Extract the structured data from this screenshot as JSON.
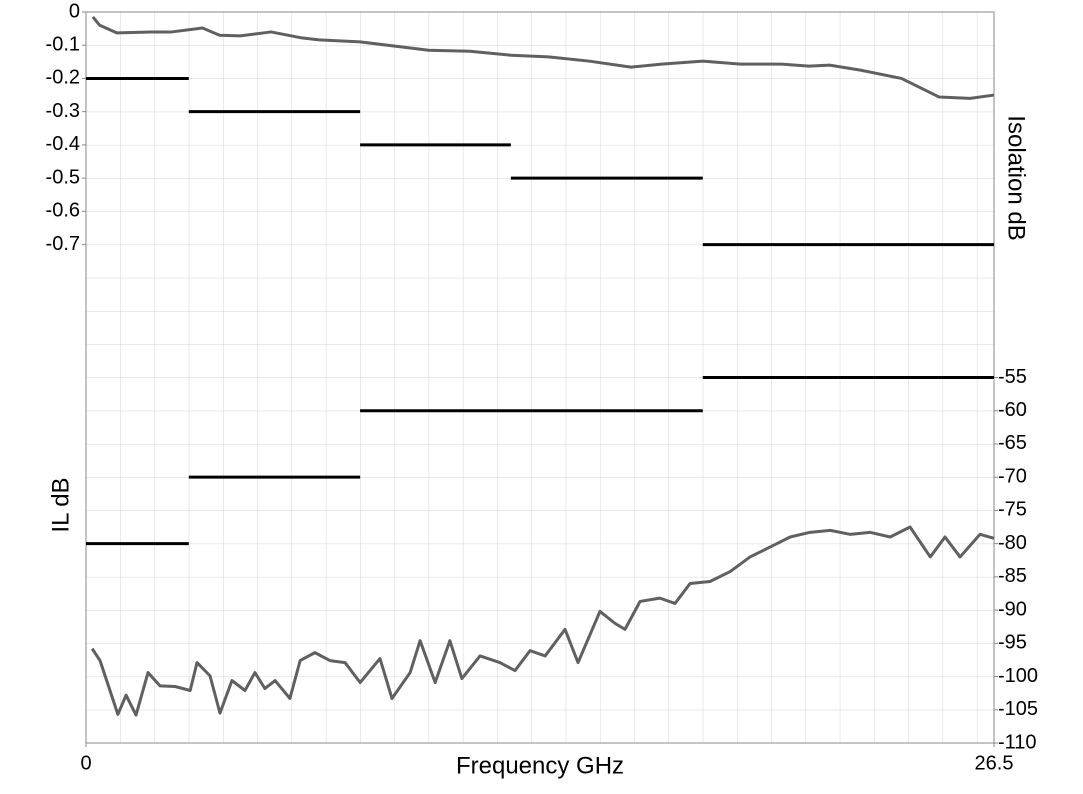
{
  "chart_data": {
    "type": "line",
    "xlabel": "Frequency GHz",
    "ylabel": "IL dB",
    "y2label": "Isolation dB",
    "xlim": [
      0,
      26.5
    ],
    "xticks": [
      0,
      26.5
    ],
    "ylim": [
      -2.2,
      0
    ],
    "yticks": [
      0,
      -0.1,
      -0.2,
      -0.3,
      -0.4,
      -0.5,
      -0.6,
      -0.7
    ],
    "y2lim": [
      -110,
      0
    ],
    "y2ticks": [
      -55,
      -60,
      -65,
      -70,
      -75,
      -80,
      -85,
      -90,
      -95,
      -100,
      -105,
      -110
    ],
    "grid": true,
    "series": [
      {
        "color": "#606060",
        "axis": "y",
        "x": [
          0.2,
          0.4,
          0.9,
          1.9,
          2.5,
          3.4,
          3.9,
          4.5,
          5.4,
          6.3,
          6.8,
          8.0,
          9.2,
          10.0,
          11.2,
          12.4,
          13.5,
          14.7,
          15.9,
          16.8,
          18.0,
          19.1,
          20.3,
          21.1,
          21.7,
          22.6,
          23.8,
          24.9,
          25.8,
          26.5
        ],
        "values": [
          -0.015,
          -0.04,
          -0.063,
          -0.06,
          -0.06,
          -0.048,
          -0.07,
          -0.072,
          -0.06,
          -0.078,
          -0.084,
          -0.09,
          -0.105,
          -0.115,
          -0.118,
          -0.13,
          -0.135,
          -0.148,
          -0.166,
          -0.157,
          -0.148,
          -0.157,
          -0.157,
          -0.163,
          -0.16,
          -0.175,
          -0.2,
          -0.256,
          -0.26,
          -0.25
        ]
      },
      {
        "color": "#606060",
        "axis": "y2",
        "x": [
          0.18,
          0.41,
          0.7,
          0.93,
          1.17,
          1.46,
          1.81,
          2.16,
          2.6,
          3.04,
          3.24,
          3.62,
          3.91,
          4.26,
          4.64,
          4.93,
          5.22,
          5.52,
          5.95,
          6.25,
          6.68,
          7.12,
          7.56,
          8.0,
          8.58,
          8.93,
          9.46,
          9.75,
          10.19,
          10.62,
          10.97,
          11.5,
          12.08,
          12.52,
          12.96,
          13.4,
          13.98,
          14.36,
          15.0,
          15.44,
          15.73,
          16.17,
          16.75,
          17.19,
          17.63,
          18.21,
          18.8,
          19.38,
          19.97,
          20.55,
          21.13,
          21.72,
          22.3,
          22.88,
          23.47,
          24.05,
          24.64,
          25.07,
          25.51,
          26.09,
          26.5
        ],
        "values": [
          -95.8,
          -97.6,
          -102.1,
          -105.7,
          -102.8,
          -105.8,
          -99.4,
          -101.4,
          -101.5,
          -102.1,
          -97.9,
          -99.9,
          -105.5,
          -100.6,
          -102.1,
          -99.4,
          -101.8,
          -100.6,
          -103.3,
          -97.6,
          -96.4,
          -97.6,
          -97.9,
          -100.9,
          -97.3,
          -103.3,
          -99.4,
          -94.6,
          -100.9,
          -94.6,
          -100.3,
          -96.9,
          -97.9,
          -99.1,
          -96.1,
          -96.9,
          -92.9,
          -97.9,
          -90.2,
          -92,
          -92.9,
          -88.7,
          -88.2,
          -89,
          -86,
          -85.7,
          -84.2,
          -82,
          -80.5,
          -79,
          -78.3,
          -78,
          -78.6,
          -78.3,
          -79,
          -77.5,
          -82,
          -79,
          -82,
          -78.6,
          -79.2
        ]
      },
      {
        "color": "#000000",
        "axis": "y",
        "draw": "pairs",
        "x": [
          0,
          3,
          3,
          8,
          8,
          12.4,
          12.4,
          18,
          18,
          26.5
        ],
        "values": [
          -0.2,
          -0.2,
          -0.3,
          -0.3,
          -0.4,
          -0.4,
          -0.5,
          -0.5,
          -0.7,
          -0.7
        ]
      },
      {
        "color": "#000000",
        "axis": "y2",
        "draw": "pairs",
        "x": [
          0,
          3,
          3,
          8,
          8,
          18,
          18,
          26.5
        ],
        "values": [
          -80,
          -80,
          -70,
          -70,
          -60,
          -60,
          -55,
          -55
        ]
      }
    ]
  }
}
